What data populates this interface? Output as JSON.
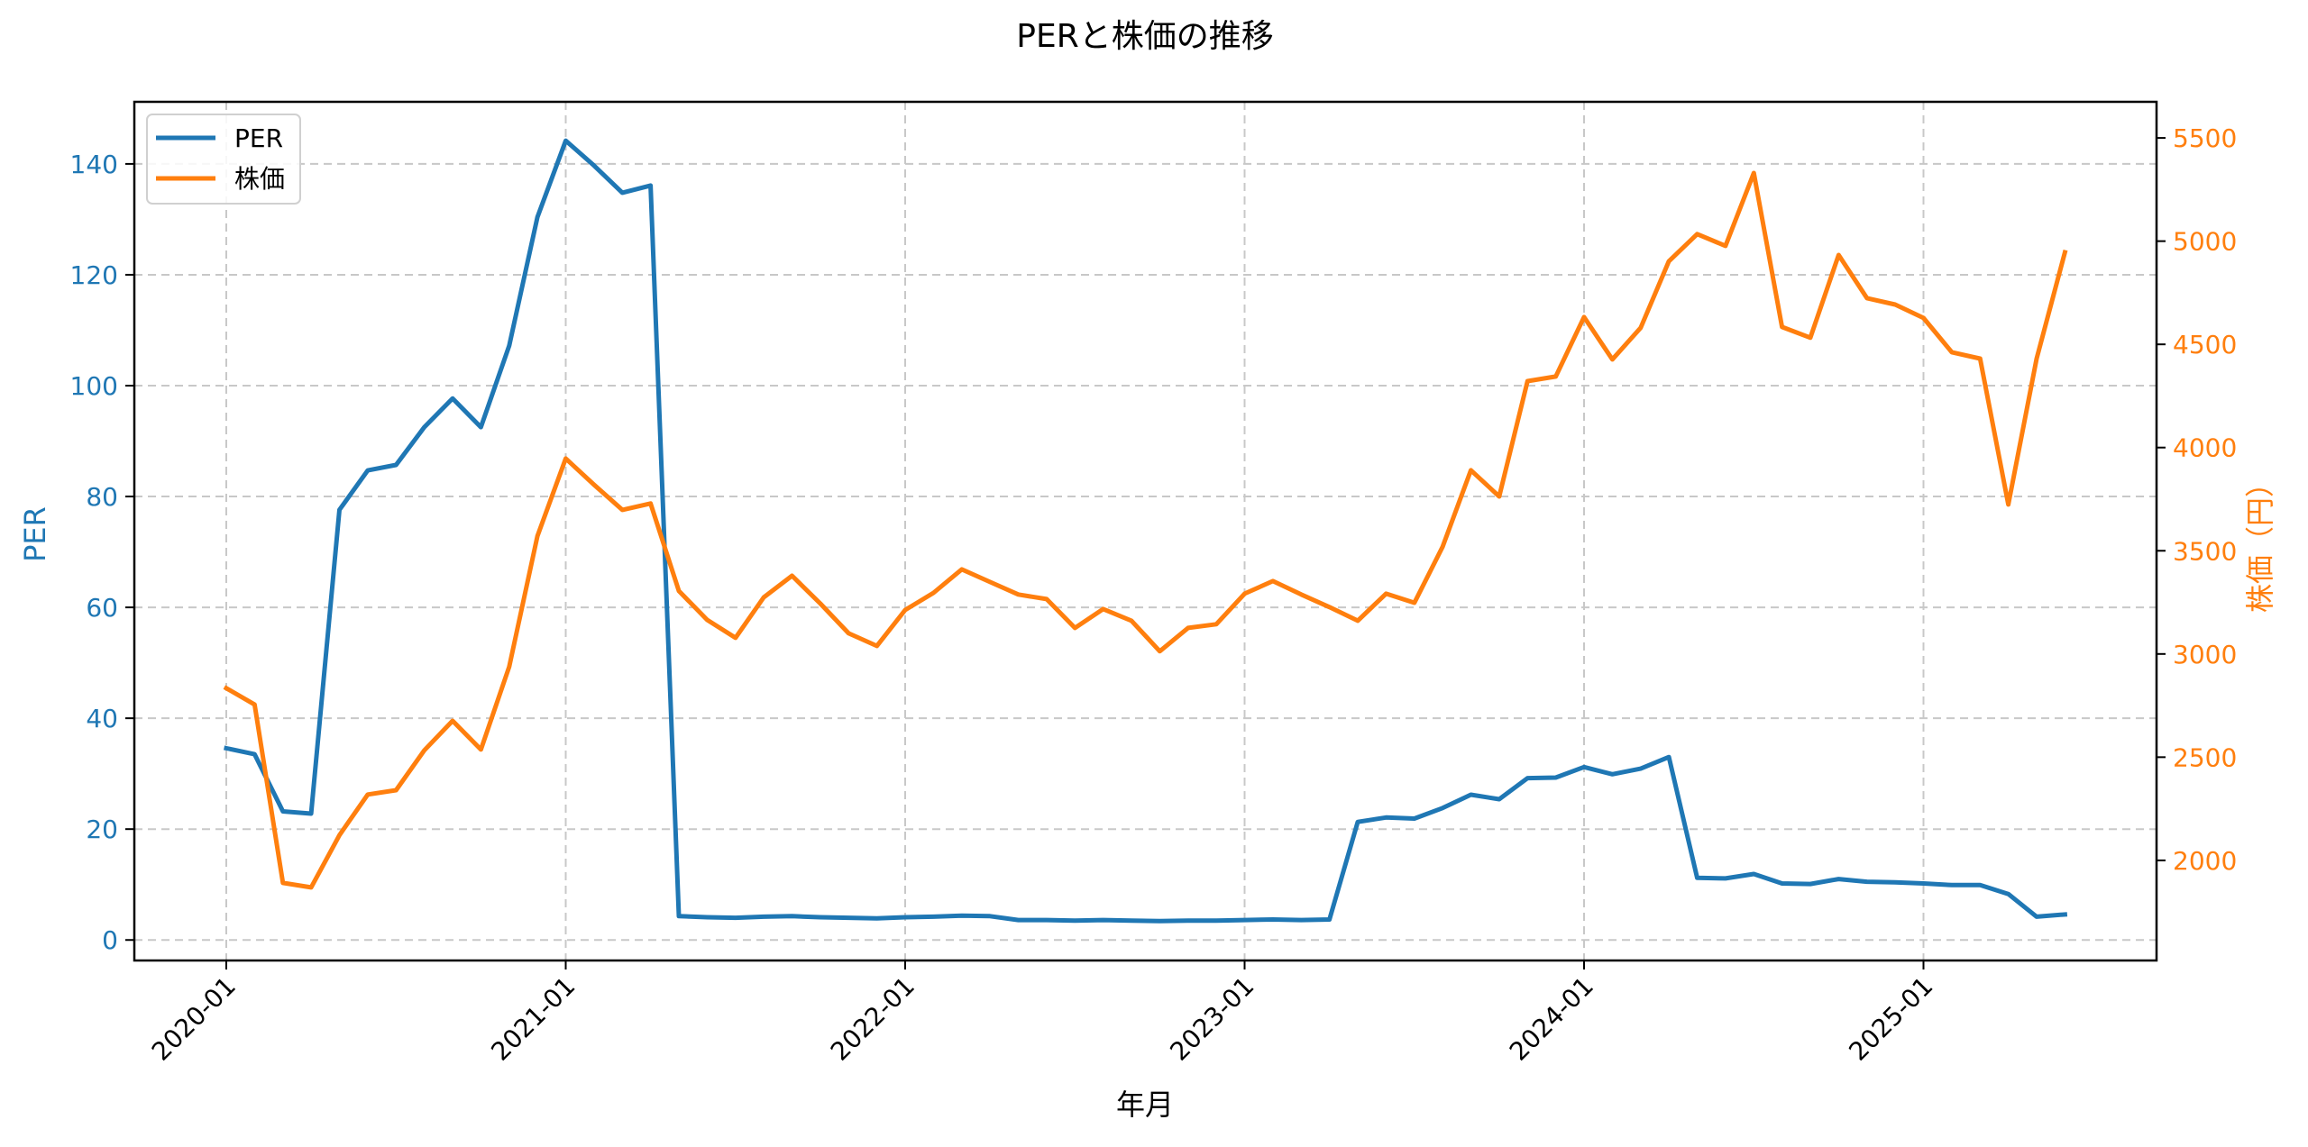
{
  "chart_data": {
    "type": "line",
    "title": "PERと株価の推移",
    "xlabel": "年月",
    "ylabel": "PER",
    "ylabel_right": "株価（円）",
    "grid": true,
    "legend_position": "upper left",
    "x_tick_labels": [
      "2020-01",
      "2021-01",
      "2022-01",
      "2023-01",
      "2024-01",
      "2025-01"
    ],
    "y_ticks_left": [
      0,
      20,
      40,
      60,
      80,
      100,
      120,
      140
    ],
    "y_ticks_right": [
      2000,
      2500,
      3000,
      3500,
      4000,
      4500,
      5000,
      5500
    ],
    "ylim_left": [
      -3.7,
      151.2
    ],
    "ylim_right": [
      1515,
      5675
    ],
    "colors": {
      "per": "#1f77b4",
      "price": "#ff7f0e",
      "grid": "#c8c8c8",
      "axis": "#000000"
    },
    "x": [
      "2020-01",
      "2020-02",
      "2020-03",
      "2020-04",
      "2020-05",
      "2020-06",
      "2020-07",
      "2020-08",
      "2020-09",
      "2020-10",
      "2020-11",
      "2020-12",
      "2021-01",
      "2021-02",
      "2021-03",
      "2021-04",
      "2021-05",
      "2021-06",
      "2021-07",
      "2021-08",
      "2021-09",
      "2021-10",
      "2021-11",
      "2021-12",
      "2022-01",
      "2022-02",
      "2022-03",
      "2022-04",
      "2022-05",
      "2022-06",
      "2022-07",
      "2022-08",
      "2022-09",
      "2022-10",
      "2022-11",
      "2022-12",
      "2023-01",
      "2023-02",
      "2023-03",
      "2023-04",
      "2023-05",
      "2023-06",
      "2023-07",
      "2023-08",
      "2023-09",
      "2023-10",
      "2023-11",
      "2023-12",
      "2024-01",
      "2024-02",
      "2024-03",
      "2024-04",
      "2024-05",
      "2024-06",
      "2024-07",
      "2024-08",
      "2024-09",
      "2024-10",
      "2024-11",
      "2024-12",
      "2025-01",
      "2025-02",
      "2025-03",
      "2025-04",
      "2025-05",
      "2025-06"
    ],
    "series": [
      {
        "name": "PER",
        "axis": "left",
        "values": [
          34.6,
          33.5,
          23.2,
          22.8,
          77.6,
          84.7,
          85.7,
          92.5,
          97.7,
          92.5,
          107.2,
          130.4,
          144.2,
          139.7,
          134.8,
          136.1,
          4.3,
          4.1,
          4.0,
          4.2,
          4.3,
          4.1,
          4.0,
          3.9,
          4.1,
          4.2,
          4.4,
          4.3,
          3.6,
          3.6,
          3.5,
          3.6,
          3.5,
          3.4,
          3.5,
          3.5,
          3.6,
          3.7,
          3.6,
          3.7,
          21.3,
          22.1,
          21.9,
          23.8,
          26.2,
          25.4,
          29.2,
          29.3,
          31.2,
          29.9,
          30.9,
          33.0,
          11.2,
          11.1,
          11.9,
          10.2,
          10.1,
          11.0,
          10.5,
          10.4,
          10.2,
          9.9,
          9.9,
          8.3,
          4.2,
          4.6
        ]
      },
      {
        "name": "株価",
        "axis": "right",
        "values": [
          2834,
          2755,
          1891,
          1869,
          2122,
          2319,
          2340,
          2533,
          2676,
          2537,
          2938,
          3571,
          3947,
          3820,
          3698,
          3729,
          3305,
          3165,
          3078,
          3274,
          3379,
          3244,
          3100,
          3039,
          3213,
          3296,
          3410,
          3349,
          3288,
          3266,
          3126,
          3218,
          3161,
          3013,
          3126,
          3144,
          3292,
          3353,
          3288,
          3227,
          3161,
          3292,
          3248,
          3519,
          3890,
          3763,
          4322,
          4344,
          4632,
          4427,
          4580,
          4903,
          5034,
          4977,
          5330,
          4584,
          4532,
          4933,
          4724,
          4693,
          4628,
          4462,
          4431,
          3724,
          4431,
          4946
        ]
      }
    ]
  },
  "legend": {
    "items": [
      {
        "label": "PER"
      },
      {
        "label": "株価"
      }
    ]
  }
}
